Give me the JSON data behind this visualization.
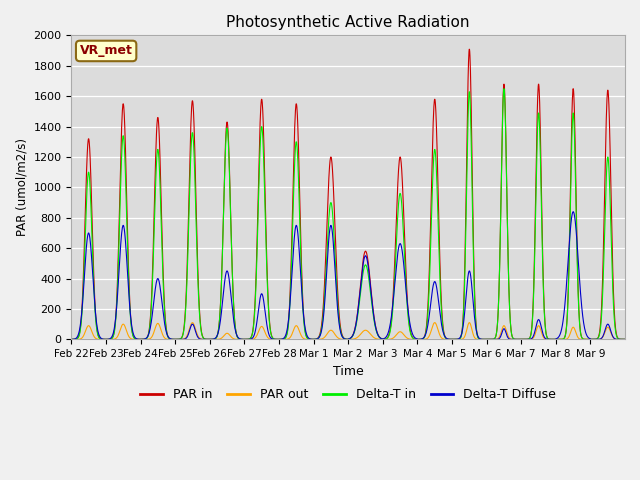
{
  "title": "Photosynthetic Active Radiation",
  "ylabel": "PAR (umol/m2/s)",
  "xlabel": "Time",
  "annotation": "VR_met",
  "ylim": [
    0,
    2000
  ],
  "yticks": [
    0,
    200,
    400,
    600,
    800,
    1000,
    1200,
    1400,
    1600,
    1800,
    2000
  ],
  "bg_color": "#dcdcdc",
  "line_colors": {
    "par_in": "#cc0000",
    "par_out": "#ffa500",
    "delta_t_in": "#00ee00",
    "delta_t_diffuse": "#0000cc"
  },
  "legend_labels": [
    "PAR in",
    "PAR out",
    "Delta-T in",
    "Delta-T Diffuse"
  ],
  "xtick_labels": [
    "Feb 22",
    "Feb 23",
    "Feb 24",
    "Feb 25",
    "Feb 26",
    "Feb 27",
    "Feb 28",
    "Mar 1",
    "Mar 2",
    "Mar 3",
    "Mar 4",
    "Mar 5",
    "Mar 6",
    "Mar 7",
    "Mar 8",
    "Mar 9"
  ],
  "num_days": 16,
  "points_per_day": 144,
  "par_in_peaks": [
    1320,
    1550,
    1460,
    1570,
    1430,
    1580,
    1550,
    1200,
    580,
    1200,
    1580,
    1910,
    1680,
    1680,
    1650,
    1640
  ],
  "par_out_peaks": [
    90,
    100,
    105,
    110,
    40,
    85,
    90,
    60,
    60,
    50,
    110,
    110,
    90,
    90,
    80,
    80
  ],
  "delta_t_in_peaks": [
    1100,
    1340,
    1250,
    1360,
    1390,
    1400,
    1300,
    900,
    490,
    960,
    1250,
    1630,
    1650,
    1490,
    1490,
    1200
  ],
  "delta_t_diffuse_peaks": [
    700,
    750,
    400,
    100,
    450,
    300,
    750,
    750,
    550,
    630,
    380,
    450,
    70,
    130,
    840,
    100
  ],
  "par_in_widths": [
    0.1,
    0.1,
    0.1,
    0.1,
    0.1,
    0.1,
    0.1,
    0.12,
    0.15,
    0.12,
    0.1,
    0.08,
    0.08,
    0.08,
    0.08,
    0.09
  ],
  "delta_t_in_widths": [
    0.1,
    0.1,
    0.1,
    0.1,
    0.1,
    0.1,
    0.1,
    0.12,
    0.15,
    0.12,
    0.1,
    0.08,
    0.08,
    0.08,
    0.08,
    0.09
  ],
  "delta_t_diffuse_widths": [
    0.12,
    0.12,
    0.12,
    0.08,
    0.12,
    0.1,
    0.12,
    0.12,
    0.15,
    0.15,
    0.12,
    0.1,
    0.06,
    0.08,
    0.15,
    0.08
  ]
}
